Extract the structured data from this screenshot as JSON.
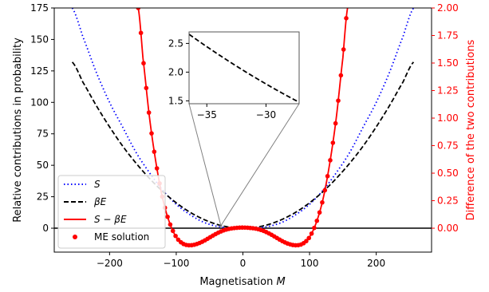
{
  "chart_data": {
    "type": "line",
    "xlabel": "Magnetisation M",
    "xlabel_parts": [
      "Magnetisation ",
      "M"
    ],
    "ylabel": "Relative contributions in probability",
    "y2label": "Difference of the two contributions",
    "xlim": [
      -283,
      283
    ],
    "ylim": [
      -19,
      175
    ],
    "y2lim": [
      -0.217,
      2.0
    ],
    "xticks": [
      -200,
      -100,
      0,
      100,
      200
    ],
    "xtick_labels": [
      "−200",
      "−100",
      "0",
      "100",
      "200"
    ],
    "yticks": [
      0,
      25,
      50,
      75,
      100,
      125,
      150,
      175
    ],
    "ytick_labels": [
      "0",
      "25",
      "50",
      "75",
      "100",
      "125",
      "150",
      "175"
    ],
    "y2ticks": [
      0,
      0.25,
      0.5,
      0.75,
      1.0,
      1.25,
      1.5,
      1.75,
      2.0
    ],
    "y2tick_labels": [
      "0.00",
      "0.25",
      "0.50",
      "0.75",
      "1.00",
      "1.25",
      "1.50",
      "1.75",
      "2.00"
    ],
    "series": [
      {
        "name": "S",
        "legend_label": "S",
        "axis": "left",
        "color": "#0000ff",
        "style": "dotted",
        "points": [
          [
            -256,
            175
          ],
          [
            -240,
            152
          ],
          [
            -220,
            124
          ],
          [
            -200,
            100
          ],
          [
            -180,
            80
          ],
          [
            -160,
            60
          ],
          [
            -140,
            44
          ],
          [
            -120,
            30
          ],
          [
            -100,
            19
          ],
          [
            -80,
            11
          ],
          [
            -60,
            5
          ],
          [
            -40,
            1.6
          ],
          [
            -20,
            0.3
          ],
          [
            0,
            0
          ],
          [
            20,
            0.3
          ],
          [
            40,
            1.6
          ],
          [
            60,
            5
          ],
          [
            80,
            11
          ],
          [
            100,
            19
          ],
          [
            120,
            30
          ],
          [
            140,
            44
          ],
          [
            160,
            60
          ],
          [
            180,
            80
          ],
          [
            200,
            100
          ],
          [
            220,
            124
          ],
          [
            240,
            152
          ],
          [
            256,
            175
          ]
        ]
      },
      {
        "name": "βE",
        "legend_label": "βE",
        "axis": "left",
        "color": "#000000",
        "style": "dashed",
        "points": [
          [
            -256,
            132
          ],
          [
            -240,
            116
          ],
          [
            -220,
            97.5
          ],
          [
            -200,
            80.5
          ],
          [
            -180,
            65
          ],
          [
            -160,
            51.5
          ],
          [
            -140,
            39.5
          ],
          [
            -120,
            29
          ],
          [
            -100,
            20.2
          ],
          [
            -80,
            12.9
          ],
          [
            -60,
            7.3
          ],
          [
            -40,
            3.2
          ],
          [
            -20,
            0.8
          ],
          [
            0,
            0
          ],
          [
            20,
            0.8
          ],
          [
            40,
            3.2
          ],
          [
            60,
            7.3
          ],
          [
            80,
            12.9
          ],
          [
            100,
            20.2
          ],
          [
            120,
            29
          ],
          [
            140,
            39.5
          ],
          [
            160,
            51.5
          ],
          [
            180,
            65
          ],
          [
            200,
            80.5
          ],
          [
            220,
            97.5
          ],
          [
            240,
            116
          ],
          [
            256,
            132
          ]
        ]
      },
      {
        "name": "S − βE",
        "legend_label": "S − βE",
        "axis": "right",
        "color": "#ff0000",
        "style": "solid",
        "points": [
          [
            -157,
            2.0
          ],
          [
            -150,
            1.55
          ],
          [
            -140,
            1.0
          ],
          [
            -130,
            0.58
          ],
          [
            -120,
            0.26
          ],
          [
            -110,
            0.05
          ],
          [
            -100,
            -0.08
          ],
          [
            -90,
            -0.14
          ],
          [
            -80,
            -0.155
          ],
          [
            -70,
            -0.145
          ],
          [
            -60,
            -0.12
          ],
          [
            -50,
            -0.085
          ],
          [
            -40,
            -0.05
          ],
          [
            -30,
            -0.022
          ],
          [
            -20,
            -0.005
          ],
          [
            -10,
            0.003
          ],
          [
            0,
            0.006
          ],
          [
            10,
            0.003
          ],
          [
            20,
            -0.005
          ],
          [
            30,
            -0.022
          ],
          [
            40,
            -0.05
          ],
          [
            50,
            -0.085
          ],
          [
            60,
            -0.12
          ],
          [
            70,
            -0.145
          ],
          [
            80,
            -0.155
          ],
          [
            90,
            -0.14
          ],
          [
            100,
            -0.08
          ],
          [
            110,
            0.05
          ],
          [
            120,
            0.26
          ],
          [
            130,
            0.58
          ],
          [
            140,
            1.0
          ],
          [
            150,
            1.55
          ],
          [
            157,
            2.0
          ]
        ]
      },
      {
        "name": "ME solution",
        "legend_label": "ME solution",
        "axis": "right",
        "color": "#ff0000",
        "style": "markers",
        "x_range": [
          -157,
          157
        ],
        "step": 4
      }
    ],
    "hline": {
      "y": 0,
      "color": "#000000"
    },
    "legend": {
      "position": "bottom-left"
    },
    "inset": {
      "xlim": [
        -36.5,
        -27.2
      ],
      "ylim": [
        1.45,
        2.7
      ],
      "xticks": [
        -35,
        -30
      ],
      "xtick_labels": [
        "−35",
        "−30"
      ],
      "yticks": [
        1.5,
        2.0,
        2.5
      ],
      "ytick_labels": [
        "1.5",
        "2.0",
        "2.5"
      ],
      "source_region": {
        "x": -33,
        "y": 2.0
      }
    }
  }
}
